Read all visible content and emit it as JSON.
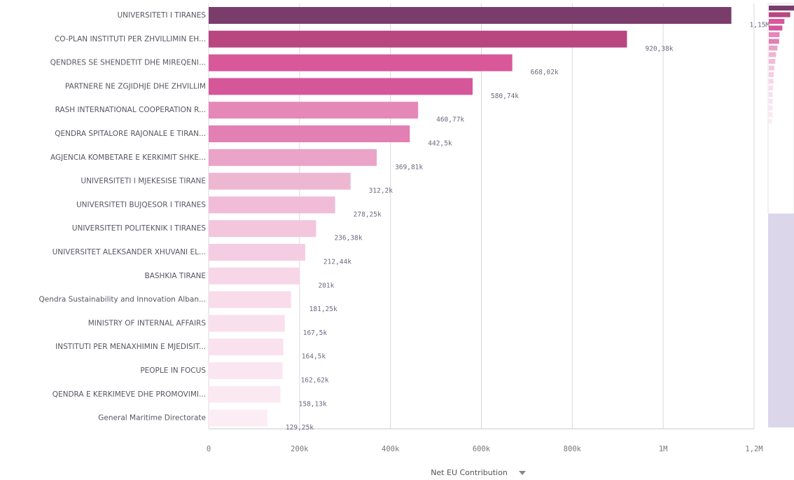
{
  "chart_data": {
    "type": "hbar",
    "xlabel": "Net EU Contribution",
    "categories": [
      "UNIVERSITETI I TIRANES",
      "CO-PLAN INSTITUTI PER ZHVILLIMIN EH...",
      "QENDRES SE SHENDETIT DHE MIREQENI...",
      "PARTNERE NE ZGJIDHJE DHE ZHVILLIM",
      "RASH INTERNATIONAL COOPERATION R...",
      "QENDRA SPITALORE RAJONALE E TIRAN...",
      "AGJENCIA KOMBETARE E KERKIMIT SHKE...",
      "UNIVERSITETI I MJEKESISE TIRANE",
      "UNIVERSITETI BUJQESOR I TIRANES",
      "UNIVERSITETI POLITEKNIK I TIRANES",
      "UNIVERSITET ALEKSANDER XHUVANI EL...",
      "BASHKIA TIRANE",
      "Qendra Sustainability and Innovation Alban...",
      "MINISTRY OF INTERNAL AFFAIRS",
      "INSTITUTI PER MENAXHIMIN E MJEDISIT...",
      "PEOPLE IN FOCUS",
      "QENDRA E KERKIMEVE DHE PROMOVIMI...",
      "General Maritime Directorate"
    ],
    "values": [
      1150000,
      920380,
      668020,
      580740,
      460770,
      442500,
      369810,
      312200,
      278250,
      236380,
      212440,
      201000,
      181250,
      167500,
      164500,
      162620,
      158130,
      129250
    ],
    "value_labels": [
      "1,15M",
      "920,38k",
      "668,02k",
      "580,74k",
      "460,77k",
      "442,5k",
      "369,81k",
      "312,2k",
      "278,25k",
      "236,38k",
      "212,44k",
      "201k",
      "181,25k",
      "167,5k",
      "164,5k",
      "162,62k",
      "158,13k",
      "129,25k"
    ],
    "colors": [
      "#7a3d6b",
      "#b8467f",
      "#d8589a",
      "#d6569a",
      "#e588b8",
      "#e27fb3",
      "#eaa4c8",
      "#edb7d2",
      "#f1bcd8",
      "#f3c6de",
      "#f5cde2",
      "#f7d6e7",
      "#f8dcea",
      "#f9e0ec",
      "#f9e2ee",
      "#fae6f0",
      "#fbe9f2",
      "#fcecf4"
    ],
    "xlim": [
      0,
      1200000
    ],
    "xticks": [
      0,
      {
        "value": 200000,
        "label": "200k"
      },
      {
        "value": 400000,
        "label": "400k"
      },
      {
        "value": 600000,
        "label": "600k"
      },
      {
        "value": 800000,
        "label": "800k"
      },
      {
        "value": 1000000,
        "label": "1M"
      },
      {
        "value": 1200000,
        "label": "1,2M"
      }
    ],
    "grid": true
  }
}
